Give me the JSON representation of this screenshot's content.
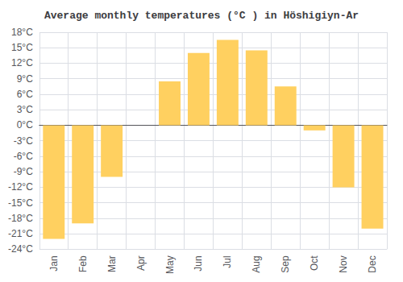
{
  "chart_data": {
    "type": "bar",
    "title": "Average monthly temperatures (°C ) in Höshigiyn-Ar",
    "categories": [
      "Jan",
      "Feb",
      "Mar",
      "Apr",
      "May",
      "Jun",
      "Jul",
      "Aug",
      "Sep",
      "Oct",
      "Nov",
      "Dec"
    ],
    "values": [
      -22,
      -19,
      -10,
      0,
      8.5,
      14,
      16.5,
      14.5,
      7.5,
      -1,
      -12,
      -20
    ],
    "color": "#FFD060",
    "ylim": [
      -24,
      18
    ],
    "yticks": [
      {
        "value": -24,
        "label": "-24°C"
      },
      {
        "value": -21,
        "label": "-21°C"
      },
      {
        "value": -18,
        "label": "-18°C"
      },
      {
        "value": -15,
        "label": "-15°C"
      },
      {
        "value": -12,
        "label": "-12°C"
      },
      {
        "value": -9,
        "label": "-9°C"
      },
      {
        "value": -6,
        "label": "-6°C"
      },
      {
        "value": -3,
        "label": "-3°C"
      },
      {
        "value": 0,
        "label": "0°C"
      },
      {
        "value": 3,
        "label": "3°C"
      },
      {
        "value": 6,
        "label": "6°C"
      },
      {
        "value": 9,
        "label": "9°C"
      },
      {
        "value": 12,
        "label": "12°C"
      },
      {
        "value": 15,
        "label": "15°C"
      },
      {
        "value": 18,
        "label": "18°C"
      }
    ],
    "grid": true
  }
}
